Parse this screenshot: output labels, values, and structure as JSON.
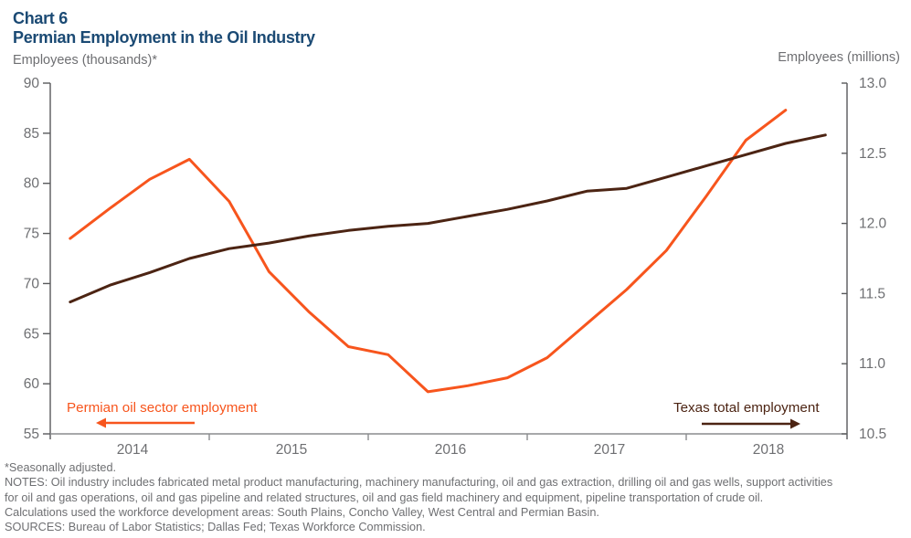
{
  "header": {
    "chart_number": "Chart 6",
    "title": "Permian Employment in the Oil Industry",
    "left_axis_caption": "Employees (thousands)*",
    "right_axis_caption": "Employees (millions)"
  },
  "chart_data": {
    "type": "line",
    "title": "Permian Employment in the Oil Industry",
    "xlabel": "",
    "left_axis": {
      "label": "Employees (thousands)*",
      "range": [
        55,
        90
      ],
      "ticks": [
        90,
        85,
        80,
        75,
        70,
        65,
        60,
        55
      ]
    },
    "right_axis": {
      "label": "Employees (millions)",
      "range": [
        10.5,
        13.0
      ],
      "ticks": [
        13.0,
        12.5,
        12.0,
        11.5,
        11.0,
        10.5
      ]
    },
    "x_axis": {
      "year_labels": [
        "2014",
        "2015",
        "2016",
        "2017",
        "2018"
      ],
      "boundary_ticks": [
        2015,
        2016,
        2017,
        2018
      ],
      "range_years": [
        2014.0,
        2019.01
      ]
    },
    "grid": false,
    "series": [
      {
        "name": "Permian oil sector employment",
        "axis": "left",
        "color": "#F7551D",
        "x": [
          2014.125,
          2014.375,
          2014.625,
          2014.875,
          2015.125,
          2015.375,
          2015.625,
          2015.875,
          2016.125,
          2016.375,
          2016.625,
          2016.875,
          2017.125,
          2017.375,
          2017.625,
          2017.875,
          2018.125,
          2018.375,
          2018.625
        ],
        "values": [
          74.5,
          77.5,
          80.4,
          82.4,
          78.2,
          71.2,
          67.2,
          63.7,
          62.9,
          59.2,
          59.8,
          60.6,
          62.6,
          66.0,
          69.4,
          73.3,
          78.7,
          84.3,
          87.3
        ],
        "annotation": {
          "label": "Permian oil sector employment",
          "arrow": "left"
        }
      },
      {
        "name": "Texas total employment",
        "axis": "right",
        "color": "#4C2413",
        "x": [
          2014.125,
          2014.375,
          2014.625,
          2014.875,
          2015.125,
          2015.375,
          2015.625,
          2015.875,
          2016.125,
          2016.375,
          2016.625,
          2016.875,
          2017.125,
          2017.375,
          2017.625,
          2017.875,
          2018.125,
          2018.375,
          2018.625,
          2018.875
        ],
        "values": [
          11.44,
          11.56,
          11.65,
          11.75,
          11.82,
          11.86,
          11.91,
          11.95,
          11.98,
          12.0,
          12.05,
          12.1,
          12.16,
          12.23,
          12.25,
          12.33,
          12.41,
          12.49,
          12.57,
          12.63
        ],
        "annotation": {
          "label": "Texas total employment",
          "arrow": "right"
        }
      }
    ]
  },
  "footnotes": {
    "lines": [
      "*Seasonally adjusted.",
      "NOTES: Oil industry includes fabricated  metal product  manufacturing,  machinery manufacturing,  oil and gas extraction, drilling oil and gas wells, support activities",
      "for oil and gas operations,  oil and gas pipeline  and related  structures, oil and gas field machinery and  equipment,  pipeline  transportation  of crude  oil.",
      "Calculations used the workforce  development  areas: South Plains, Concho Valley,  West Central  and Permian  Basin.",
      "SOURCES: Bureau  of Labor  Statistics; Dallas Fed;  Texas  Workforce  Commission."
    ]
  },
  "colors": {
    "title_navy": "#1B4A74",
    "axis_gray": "#58595B",
    "label_gray": "#6E6F72",
    "permian_orange": "#F7551D",
    "texas_brown": "#4C2413"
  }
}
